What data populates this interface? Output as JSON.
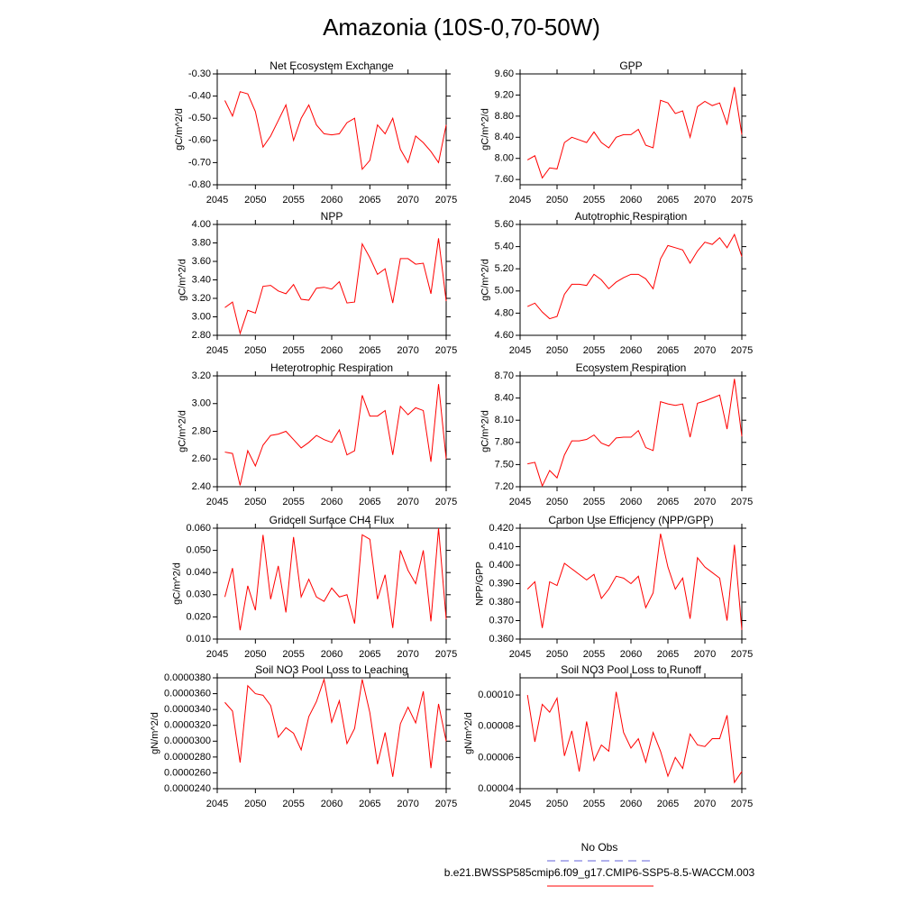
{
  "title": "Amazonia (10S-0,70-50W)",
  "legend": [
    {
      "label": "No Obs",
      "color": "#6060d8",
      "dashed": true
    },
    {
      "label": "b.e21.BWSSP585cmip6.f09_g17.CMIP6-SSP5-8.5-WACCM.003",
      "color": "#ff0000",
      "dashed": false
    }
  ],
  "chart_data": [
    {
      "type": "line",
      "title": "Net Ecosystem Exchange",
      "ylabel": "gC/m^2/d",
      "color": "#ff0000",
      "x": [
        2046,
        2047,
        2048,
        2049,
        2050,
        2051,
        2052,
        2053,
        2054,
        2055,
        2056,
        2057,
        2058,
        2059,
        2060,
        2061,
        2062,
        2063,
        2064,
        2065,
        2066,
        2067,
        2068,
        2069,
        2070,
        2071,
        2072,
        2073,
        2074,
        2075
      ],
      "values": [
        -0.42,
        -0.49,
        -0.38,
        -0.39,
        -0.47,
        -0.63,
        -0.58,
        -0.51,
        -0.44,
        -0.6,
        -0.5,
        -0.44,
        -0.53,
        -0.57,
        -0.575,
        -0.57,
        -0.52,
        -0.5,
        -0.73,
        -0.69,
        -0.53,
        -0.57,
        -0.5,
        -0.64,
        -0.7,
        -0.58,
        -0.61,
        -0.65,
        -0.7,
        -0.53
      ],
      "xlim": [
        2045,
        2075
      ],
      "xticks": [
        2045,
        2050,
        2055,
        2060,
        2065,
        2070,
        2075
      ],
      "ylim": [
        -0.8,
        -0.3
      ],
      "yticks": [
        {
          "value": -0.8,
          "label": "-0.80"
        },
        {
          "value": -0.7,
          "label": "-0.70"
        },
        {
          "value": -0.6,
          "label": "-0.60"
        },
        {
          "value": -0.5,
          "label": "-0.50"
        },
        {
          "value": -0.4,
          "label": "-0.40"
        },
        {
          "value": -0.3,
          "label": "-0.30"
        }
      ]
    },
    {
      "type": "line",
      "title": "GPP",
      "ylabel": "gC/m^2/d",
      "color": "#ff0000",
      "x": [
        2046,
        2047,
        2048,
        2049,
        2050,
        2051,
        2052,
        2053,
        2054,
        2055,
        2056,
        2057,
        2058,
        2059,
        2060,
        2061,
        2062,
        2063,
        2064,
        2065,
        2066,
        2067,
        2068,
        2069,
        2070,
        2071,
        2072,
        2073,
        2074,
        2075
      ],
      "values": [
        7.97,
        8.05,
        7.63,
        7.82,
        7.8,
        8.3,
        8.4,
        8.35,
        8.3,
        8.5,
        8.3,
        8.2,
        8.4,
        8.45,
        8.45,
        8.55,
        8.25,
        8.2,
        9.1,
        9.05,
        8.85,
        8.9,
        8.4,
        8.98,
        9.08,
        9.0,
        9.05,
        8.65,
        9.35,
        8.45
      ],
      "xlim": [
        2045,
        2075
      ],
      "xticks": [
        2045,
        2050,
        2055,
        2060,
        2065,
        2070,
        2075
      ],
      "ylim": [
        7.5,
        9.6
      ],
      "yticks": [
        {
          "value": 7.6,
          "label": "7.60"
        },
        {
          "value": 8,
          "label": "8.00"
        },
        {
          "value": 8.4,
          "label": "8.40"
        },
        {
          "value": 8.8,
          "label": "8.80"
        },
        {
          "value": 9.2,
          "label": "9.20"
        },
        {
          "value": 9.6,
          "label": "9.60"
        }
      ]
    },
    {
      "type": "line",
      "title": "NPP",
      "ylabel": "gC/m^2/d",
      "color": "#ff0000",
      "x": [
        2046,
        2047,
        2048,
        2049,
        2050,
        2051,
        2052,
        2053,
        2054,
        2055,
        2056,
        2057,
        2058,
        2059,
        2060,
        2061,
        2062,
        2063,
        2064,
        2065,
        2066,
        2067,
        2068,
        2069,
        2070,
        2071,
        2072,
        2073,
        2074,
        2075
      ],
      "values": [
        3.1,
        3.16,
        2.82,
        3.07,
        3.04,
        3.33,
        3.34,
        3.28,
        3.25,
        3.35,
        3.19,
        3.18,
        3.31,
        3.32,
        3.3,
        3.38,
        3.15,
        3.16,
        3.79,
        3.64,
        3.46,
        3.52,
        3.15,
        3.63,
        3.63,
        3.57,
        3.58,
        3.25,
        3.85,
        3.17
      ],
      "xlim": [
        2045,
        2075
      ],
      "xticks": [
        2045,
        2050,
        2055,
        2060,
        2065,
        2070,
        2075
      ],
      "ylim": [
        2.8,
        4.0
      ],
      "yticks": [
        {
          "value": 2.8,
          "label": "2.80"
        },
        {
          "value": 3,
          "label": "3.00"
        },
        {
          "value": 3.2,
          "label": "3.20"
        },
        {
          "value": 3.4,
          "label": "3.40"
        },
        {
          "value": 3.6,
          "label": "3.60"
        },
        {
          "value": 3.8,
          "label": "3.80"
        },
        {
          "value": 4,
          "label": "4.00"
        }
      ]
    },
    {
      "type": "line",
      "title": "Autotrophic Respiration",
      "ylabel": "gC/m^2/d",
      "color": "#ff0000",
      "x": [
        2046,
        2047,
        2048,
        2049,
        2050,
        2051,
        2052,
        2053,
        2054,
        2055,
        2056,
        2057,
        2058,
        2059,
        2060,
        2061,
        2062,
        2063,
        2064,
        2065,
        2066,
        2067,
        2068,
        2069,
        2070,
        2071,
        2072,
        2073,
        2074,
        2075
      ],
      "values": [
        4.86,
        4.89,
        4.81,
        4.75,
        4.77,
        4.97,
        5.06,
        5.06,
        5.05,
        5.15,
        5.1,
        5.02,
        5.08,
        5.12,
        5.15,
        5.15,
        5.11,
        5.02,
        5.29,
        5.41,
        5.39,
        5.37,
        5.25,
        5.36,
        5.44,
        5.42,
        5.48,
        5.39,
        5.51,
        5.31
      ],
      "xlim": [
        2045,
        2075
      ],
      "xticks": [
        2045,
        2050,
        2055,
        2060,
        2065,
        2070,
        2075
      ],
      "ylim": [
        4.6,
        5.6
      ],
      "yticks": [
        {
          "value": 4.6,
          "label": "4.60"
        },
        {
          "value": 4.8,
          "label": "4.80"
        },
        {
          "value": 5,
          "label": "5.00"
        },
        {
          "value": 5.2,
          "label": "5.20"
        },
        {
          "value": 5.4,
          "label": "5.40"
        },
        {
          "value": 5.6,
          "label": "5.60"
        }
      ]
    },
    {
      "type": "line",
      "title": "Heterotrophic Respiration",
      "ylabel": "gC/m^2/d",
      "color": "#ff0000",
      "x": [
        2046,
        2047,
        2048,
        2049,
        2050,
        2051,
        2052,
        2053,
        2054,
        2055,
        2056,
        2057,
        2058,
        2059,
        2060,
        2061,
        2062,
        2063,
        2064,
        2065,
        2066,
        2067,
        2068,
        2069,
        2070,
        2071,
        2072,
        2073,
        2074,
        2075
      ],
      "values": [
        2.65,
        2.64,
        2.41,
        2.66,
        2.55,
        2.7,
        2.77,
        2.78,
        2.8,
        2.74,
        2.68,
        2.72,
        2.77,
        2.74,
        2.72,
        2.81,
        2.63,
        2.66,
        3.06,
        2.91,
        2.91,
        2.95,
        2.63,
        2.98,
        2.92,
        2.97,
        2.95,
        2.58,
        3.14,
        2.6
      ],
      "xlim": [
        2045,
        2075
      ],
      "xticks": [
        2045,
        2050,
        2055,
        2060,
        2065,
        2070,
        2075
      ],
      "ylim": [
        2.4,
        3.2
      ],
      "yticks": [
        {
          "value": 2.4,
          "label": "2.40"
        },
        {
          "value": 2.6,
          "label": "2.60"
        },
        {
          "value": 2.8,
          "label": "2.80"
        },
        {
          "value": 3,
          "label": "3.00"
        },
        {
          "value": 3.2,
          "label": "3.20"
        }
      ]
    },
    {
      "type": "line",
      "title": "Ecosystem Respiration",
      "ylabel": "gC/m^2/d",
      "color": "#ff0000",
      "x": [
        2046,
        2047,
        2048,
        2049,
        2050,
        2051,
        2052,
        2053,
        2054,
        2055,
        2056,
        2057,
        2058,
        2059,
        2060,
        2061,
        2062,
        2063,
        2064,
        2065,
        2066,
        2067,
        2068,
        2069,
        2070,
        2071,
        2072,
        2073,
        2074,
        2075
      ],
      "values": [
        7.51,
        7.53,
        7.21,
        7.42,
        7.32,
        7.63,
        7.82,
        7.82,
        7.84,
        7.9,
        7.79,
        7.75,
        7.86,
        7.87,
        7.87,
        7.96,
        7.73,
        7.69,
        8.35,
        8.32,
        8.3,
        8.32,
        7.87,
        8.33,
        8.36,
        8.4,
        8.44,
        7.98,
        8.66,
        7.88
      ],
      "xlim": [
        2045,
        2075
      ],
      "xticks": [
        2045,
        2050,
        2055,
        2060,
        2065,
        2070,
        2075
      ],
      "ylim": [
        7.2,
        8.7
      ],
      "yticks": [
        {
          "value": 7.2,
          "label": "7.20"
        },
        {
          "value": 7.5,
          "label": "7.50"
        },
        {
          "value": 7.8,
          "label": "7.80"
        },
        {
          "value": 8.1,
          "label": "8.10"
        },
        {
          "value": 8.4,
          "label": "8.40"
        },
        {
          "value": 8.7,
          "label": "8.70"
        }
      ]
    },
    {
      "type": "line",
      "title": "Gridcell Surface CH4 Flux",
      "ylabel": "gC/m^2/d",
      "color": "#ff0000",
      "x": [
        2046,
        2047,
        2048,
        2049,
        2050,
        2051,
        2052,
        2053,
        2054,
        2055,
        2056,
        2057,
        2058,
        2059,
        2060,
        2061,
        2062,
        2063,
        2064,
        2065,
        2066,
        2067,
        2068,
        2069,
        2070,
        2071,
        2072,
        2073,
        2074,
        2075
      ],
      "values": [
        0.029,
        0.042,
        0.014,
        0.034,
        0.023,
        0.057,
        0.028,
        0.043,
        0.022,
        0.056,
        0.029,
        0.037,
        0.029,
        0.027,
        0.033,
        0.029,
        0.03,
        0.017,
        0.057,
        0.055,
        0.028,
        0.039,
        0.015,
        0.05,
        0.041,
        0.035,
        0.05,
        0.018,
        0.06,
        0.019
      ],
      "xlim": [
        2045,
        2075
      ],
      "xticks": [
        2045,
        2050,
        2055,
        2060,
        2065,
        2070,
        2075
      ],
      "ylim": [
        0.01,
        0.06
      ],
      "yticks": [
        {
          "value": 0.01,
          "label": "0.010"
        },
        {
          "value": 0.02,
          "label": "0.020"
        },
        {
          "value": 0.03,
          "label": "0.030"
        },
        {
          "value": 0.04,
          "label": "0.040"
        },
        {
          "value": 0.05,
          "label": "0.050"
        },
        {
          "value": 0.06,
          "label": "0.060"
        }
      ]
    },
    {
      "type": "line",
      "title": "Carbon Use Efficiency (NPP/GPP)",
      "ylabel": "NPP/GPP",
      "color": "#ff0000",
      "x": [
        2046,
        2047,
        2048,
        2049,
        2050,
        2051,
        2052,
        2053,
        2054,
        2055,
        2056,
        2057,
        2058,
        2059,
        2060,
        2061,
        2062,
        2063,
        2064,
        2065,
        2066,
        2067,
        2068,
        2069,
        2070,
        2071,
        2072,
        2073,
        2074,
        2075
      ],
      "values": [
        0.387,
        0.391,
        0.366,
        0.391,
        0.389,
        0.401,
        0.398,
        0.395,
        0.392,
        0.395,
        0.382,
        0.387,
        0.394,
        0.393,
        0.39,
        0.394,
        0.377,
        0.385,
        0.417,
        0.399,
        0.387,
        0.393,
        0.371,
        0.404,
        0.399,
        0.396,
        0.393,
        0.37,
        0.411,
        0.365
      ],
      "xlim": [
        2045,
        2075
      ],
      "xticks": [
        2045,
        2050,
        2055,
        2060,
        2065,
        2070,
        2075
      ],
      "ylim": [
        0.36,
        0.42
      ],
      "yticks": [
        {
          "value": 0.36,
          "label": "0.360"
        },
        {
          "value": 0.37,
          "label": "0.370"
        },
        {
          "value": 0.38,
          "label": "0.380"
        },
        {
          "value": 0.39,
          "label": "0.390"
        },
        {
          "value": 0.4,
          "label": "0.400"
        },
        {
          "value": 0.41,
          "label": "0.410"
        },
        {
          "value": 0.42,
          "label": "0.420"
        }
      ]
    },
    {
      "type": "line",
      "title": "Soil NO3 Pool Loss to Leaching",
      "ylabel": "gN/m^2/d",
      "color": "#ff0000",
      "x": [
        2046,
        2047,
        2048,
        2049,
        2050,
        2051,
        2052,
        2053,
        2054,
        2055,
        2056,
        2057,
        2058,
        2059,
        2060,
        2061,
        2062,
        2063,
        2064,
        2065,
        2066,
        2067,
        2068,
        2069,
        2070,
        2071,
        2072,
        2073,
        2074,
        2075
      ],
      "values": [
        3.49e-05,
        3.38e-05,
        2.73e-05,
        3.7e-05,
        3.6e-05,
        3.58e-05,
        3.45e-05,
        3.05e-05,
        3.17e-05,
        3.1e-05,
        2.89e-05,
        3.31e-05,
        3.5e-05,
        3.78e-05,
        3.24e-05,
        3.51e-05,
        2.97e-05,
        3.16e-05,
        3.78e-05,
        3.36e-05,
        2.71e-05,
        3.11e-05,
        2.55e-05,
        3.22e-05,
        3.43e-05,
        3.23e-05,
        3.63e-05,
        2.66e-05,
        3.47e-05,
        3e-05
      ],
      "xlim": [
        2045,
        2075
      ],
      "xticks": [
        2045,
        2050,
        2055,
        2060,
        2065,
        2070,
        2075
      ],
      "ylim": [
        2.4e-05,
        3.8e-05
      ],
      "yticks": [
        {
          "value": 2.4e-05,
          "label": "0.0000240"
        },
        {
          "value": 2.6e-05,
          "label": "0.0000260"
        },
        {
          "value": 2.8e-05,
          "label": "0.0000280"
        },
        {
          "value": 3e-05,
          "label": "0.0000300"
        },
        {
          "value": 3.2e-05,
          "label": "0.0000320"
        },
        {
          "value": 3.4e-05,
          "label": "0.0000340"
        },
        {
          "value": 3.6e-05,
          "label": "0.0000360"
        },
        {
          "value": 3.8e-05,
          "label": "0.0000380"
        }
      ]
    },
    {
      "type": "line",
      "title": "Soil NO3 Pool Loss to Runoff",
      "ylabel": "gN/m^2/d",
      "color": "#ff0000",
      "x": [
        2046,
        2047,
        2048,
        2049,
        2050,
        2051,
        2052,
        2053,
        2054,
        2055,
        2056,
        2057,
        2058,
        2059,
        2060,
        2061,
        2062,
        2063,
        2064,
        2065,
        2066,
        2067,
        2068,
        2069,
        2070,
        2071,
        2072,
        2073,
        2074,
        2075
      ],
      "values": [
        0.0001,
        7e-05,
        9.4e-05,
        8.9e-05,
        9.8e-05,
        6.1e-05,
        7.7e-05,
        5.1e-05,
        8.3e-05,
        5.8e-05,
        6.8e-05,
        6.4e-05,
        0.000102,
        7.6e-05,
        6.6e-05,
        7.2e-05,
        5.7e-05,
        7.6e-05,
        6.4e-05,
        4.8e-05,
        6e-05,
        5.3e-05,
        7.5e-05,
        6.8e-05,
        6.7e-05,
        7.2e-05,
        7.2e-05,
        8.7e-05,
        4.4e-05,
        5.1e-05
      ],
      "xlim": [
        2045,
        2075
      ],
      "xticks": [
        2045,
        2050,
        2055,
        2060,
        2065,
        2070,
        2075
      ],
      "ylim": [
        4e-05,
        0.000111
      ],
      "yticks": [
        4e-05,
        6e-05,
        8e-05,
        {
          "value": 0.0001,
          "label": "0.00010"
        }
      ]
    }
  ]
}
